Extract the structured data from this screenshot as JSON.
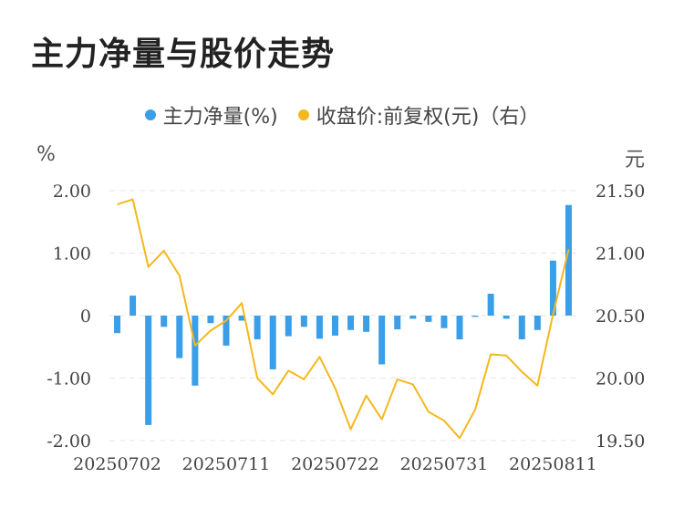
{
  "title": "主力净量与股价走势",
  "legend": {
    "bar_label": "主力净量(%)",
    "line_label": "收盘价:前复权(元)（右）"
  },
  "units": {
    "left": "%",
    "right": "元"
  },
  "colors": {
    "bar": "#3a9ee8",
    "line": "#f5b81c",
    "grid": "#e6e6e6"
  },
  "chart_data": {
    "type": "bar+line",
    "x": [
      "20250702",
      "20250703",
      "20250704",
      "20250707",
      "20250708",
      "20250709",
      "20250710",
      "20250711",
      "20250714",
      "20250715",
      "20250716",
      "20250717",
      "20250718",
      "20250721",
      "20250722",
      "20250723",
      "20250724",
      "20250725",
      "20250728",
      "20250729",
      "20250730",
      "20250731",
      "20250801",
      "20250804",
      "20250805",
      "20250806",
      "20250807",
      "20250808",
      "20250811",
      "20250812"
    ],
    "x_tick_labels": [
      "20250702",
      "20250711",
      "20250722",
      "20250731",
      "20250811"
    ],
    "series": [
      {
        "name": "主力净量(%)",
        "axis": "left",
        "type": "bar",
        "values": [
          -0.28,
          0.32,
          -1.75,
          -0.18,
          -0.68,
          -1.12,
          -0.12,
          -0.48,
          -0.08,
          -0.38,
          -0.86,
          -0.33,
          -0.18,
          -0.37,
          -0.32,
          -0.23,
          -0.26,
          -0.78,
          -0.22,
          -0.05,
          -0.1,
          -0.2,
          -0.38,
          -0.02,
          0.35,
          -0.05,
          -0.38,
          -0.23,
          0.88,
          1.77
        ]
      },
      {
        "name": "收盘价:前复权(元)（右）",
        "axis": "right",
        "type": "line",
        "values": [
          21.39,
          21.43,
          20.89,
          21.02,
          20.82,
          20.26,
          20.38,
          20.46,
          20.6,
          20.0,
          19.87,
          20.06,
          19.99,
          20.17,
          19.92,
          19.59,
          19.86,
          19.67,
          19.99,
          19.95,
          19.73,
          19.66,
          19.52,
          19.75,
          20.19,
          20.18,
          20.05,
          19.94,
          20.51,
          21.03
        ]
      }
    ],
    "y_left": {
      "ticks": [
        "2.00",
        "1.00",
        "0",
        "-1.00",
        "-2.00"
      ],
      "range": [
        -2,
        2
      ]
    },
    "y_right": {
      "ticks": [
        "21.50",
        "21.00",
        "20.50",
        "20.00",
        "19.50"
      ],
      "range": [
        19.5,
        21.5
      ]
    },
    "grid": true,
    "legend_position": "top-center"
  }
}
